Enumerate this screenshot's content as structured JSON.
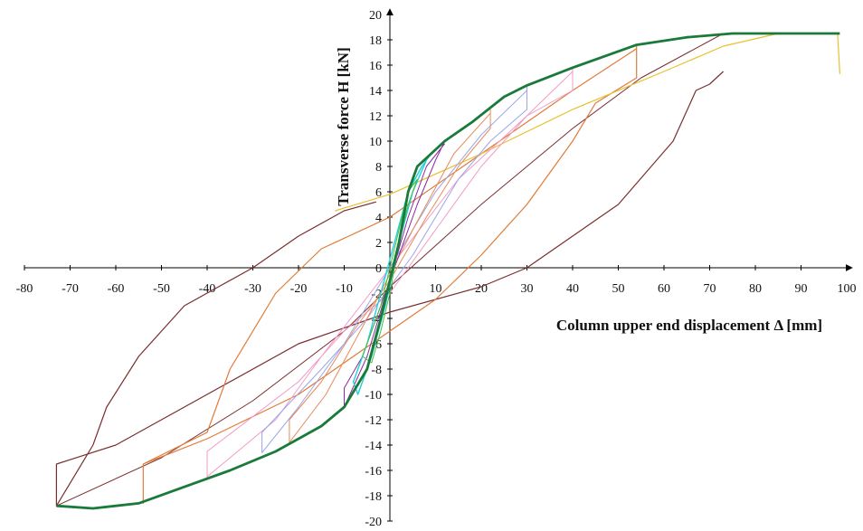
{
  "chart_data": {
    "type": "line",
    "x_label": "Column upper end displacement Δ [mm]",
    "y_label": "Transverse force H [kN]",
    "xlim": [
      -80,
      100
    ],
    "xticks": [
      -80,
      -70,
      -60,
      -50,
      -40,
      -30,
      -20,
      -10,
      0,
      10,
      20,
      30,
      40,
      50,
      60,
      70,
      80,
      90,
      100
    ],
    "ylim": [
      -20,
      20
    ],
    "yticks": [
      -20,
      -18,
      -16,
      -14,
      -12,
      -10,
      -8,
      -6,
      -4,
      -2,
      0,
      2,
      4,
      6,
      8,
      10,
      12,
      14,
      16,
      18,
      20
    ],
    "series": [
      {
        "color": "#7a2e2e",
        "width": 1.2,
        "x": [
          73,
          70,
          67,
          62,
          50,
          40,
          30,
          20,
          0,
          -20,
          -40,
          -60,
          -73,
          -73,
          -65,
          -62,
          -55,
          -45,
          -30,
          -20,
          -10,
          -3
        ],
        "values": [
          15.5,
          14.5,
          14,
          10,
          5,
          2.5,
          0,
          -1.5,
          -3.5,
          -6,
          -10,
          -14,
          -15.5,
          -18.8,
          -14,
          -11,
          -7,
          -3,
          0,
          2.5,
          4.5,
          5.2
        ]
      },
      {
        "color": "#7a2e2e",
        "width": 1,
        "x": [
          -73,
          -50,
          -30,
          -10,
          0,
          20,
          40,
          55,
          73
        ],
        "values": [
          -18.8,
          -15,
          -10.5,
          -5,
          -1.5,
          5,
          11,
          15,
          18.5
        ]
      },
      {
        "color": "#e07b39",
        "width": 1.2,
        "x": [
          54,
          54,
          45,
          40,
          30,
          20,
          10,
          0,
          -20,
          -40,
          -54,
          -54,
          -54,
          -40,
          -35,
          -25,
          -15,
          0,
          20,
          40,
          54
        ],
        "values": [
          17.6,
          15,
          13,
          10,
          5,
          1,
          -2.5,
          -5,
          -10,
          -13.5,
          -15.5,
          -18.6,
          -15.5,
          -13,
          -8,
          -2,
          1.5,
          4,
          9,
          14,
          17.3
        ]
      },
      {
        "color": "#e8c030",
        "width": 1.2,
        "x": [
          -12,
          0,
          20,
          40,
          60,
          73,
          85,
          98,
          98.5
        ],
        "values": [
          4.5,
          5.8,
          9,
          12.5,
          15.5,
          17.5,
          18.5,
          18.5,
          15.3
        ]
      },
      {
        "color": "#f29bc6",
        "width": 1,
        "x": [
          40,
          40,
          30,
          20,
          10,
          0,
          -10,
          -20,
          -40,
          -40,
          -25,
          -15,
          0,
          15,
          30,
          40
        ],
        "values": [
          15.8,
          14,
          12,
          8,
          3,
          -2,
          -5,
          -9,
          -14.5,
          -16.5,
          -12,
          -7,
          0,
          7,
          12,
          15.5
        ]
      },
      {
        "color": "#9aa6e8",
        "width": 1,
        "x": [
          30,
          30,
          22,
          15,
          5,
          -5,
          -15,
          -28,
          -28,
          -20,
          -10,
          0,
          10,
          20,
          30
        ],
        "values": [
          14.4,
          12.5,
          10,
          7,
          1,
          -4,
          -8,
          -13,
          -14.6,
          -11,
          -6,
          0,
          6,
          10.5,
          14
        ]
      },
      {
        "color": "#e88a5a",
        "width": 1,
        "x": [
          22,
          22,
          15,
          8,
          0,
          -8,
          -15,
          -22,
          -22,
          -14,
          -5,
          5,
          14,
          22
        ],
        "values": [
          12.5,
          11,
          8,
          4,
          -1,
          -5,
          -9,
          -12,
          -13.8,
          -10,
          -4,
          3,
          9,
          12.2
        ]
      },
      {
        "color": "#8a2aa0",
        "width": 1,
        "x": [
          12,
          10,
          6,
          2,
          -2,
          -6,
          -10,
          -10,
          -5,
          0,
          4,
          8,
          12
        ],
        "values": [
          10,
          8.5,
          5,
          1,
          -3,
          -7,
          -9.5,
          -11,
          -7,
          -1,
          4,
          8,
          9.8
        ]
      },
      {
        "color": "#22d0d8",
        "width": 1.4,
        "x": [
          9,
          7,
          4,
          1,
          -2,
          -5,
          -8,
          -7,
          -4,
          -1,
          2,
          5,
          8
        ],
        "values": [
          9,
          8,
          6,
          2,
          -2,
          -6,
          -9,
          -10,
          -7,
          -3,
          2,
          6,
          8.5
        ]
      },
      {
        "color": "#40c040",
        "width": 1,
        "x": [
          6,
          4,
          2,
          0,
          -2,
          -4,
          -6,
          -4,
          -2,
          0,
          2,
          4,
          6
        ],
        "values": [
          7,
          6,
          3,
          0,
          -3,
          -5,
          -7,
          -7.5,
          -5,
          -2,
          2,
          5,
          7
        ]
      },
      {
        "color": "#1a7a3a",
        "width": 2.8,
        "x": [
          -73,
          -65,
          -55,
          -45,
          -35,
          -25,
          -15,
          -10,
          -5,
          -2,
          0,
          2,
          4,
          6,
          9,
          12,
          18,
          25,
          30,
          40,
          54,
          65,
          75,
          98.5
        ],
        "values": [
          -18.8,
          -19,
          -18.6,
          -17.3,
          -16,
          -14.5,
          -12.5,
          -11,
          -8,
          -4,
          -1,
          2,
          6,
          8,
          9,
          10,
          11.5,
          13.5,
          14.4,
          15.8,
          17.6,
          18.2,
          18.5,
          18.5
        ]
      }
    ]
  }
}
